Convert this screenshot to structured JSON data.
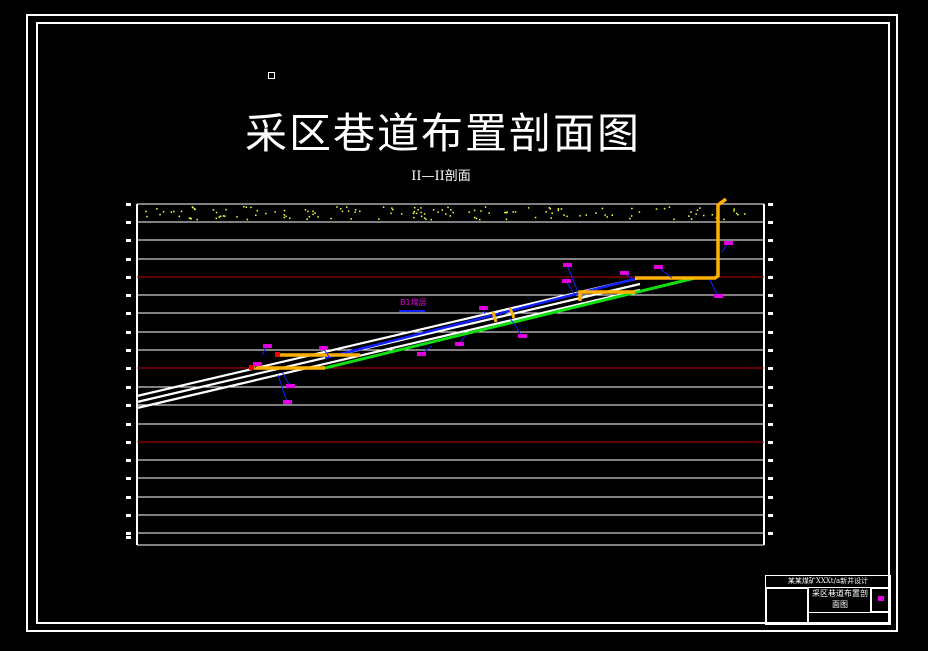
{
  "drawing": {
    "title": "采区巷道布置剖面图",
    "subtitle": "II—II剖面",
    "seam_label": "B1煤层"
  },
  "title_block": {
    "project": "某某煤矿XXXt/a新井设计",
    "drawing_name": "采区巷道布置剖面图"
  },
  "colors": {
    "background": "#000000",
    "frame": "#ffffff",
    "gridline": "#ffffff",
    "marker_line": "#c00000",
    "surface_dots": "#ffff40",
    "roadway_blue": "#1020ff",
    "roadway_green": "#10e010",
    "shaft_orange": "#ffb000",
    "label_magenta": "#e000e0"
  }
}
